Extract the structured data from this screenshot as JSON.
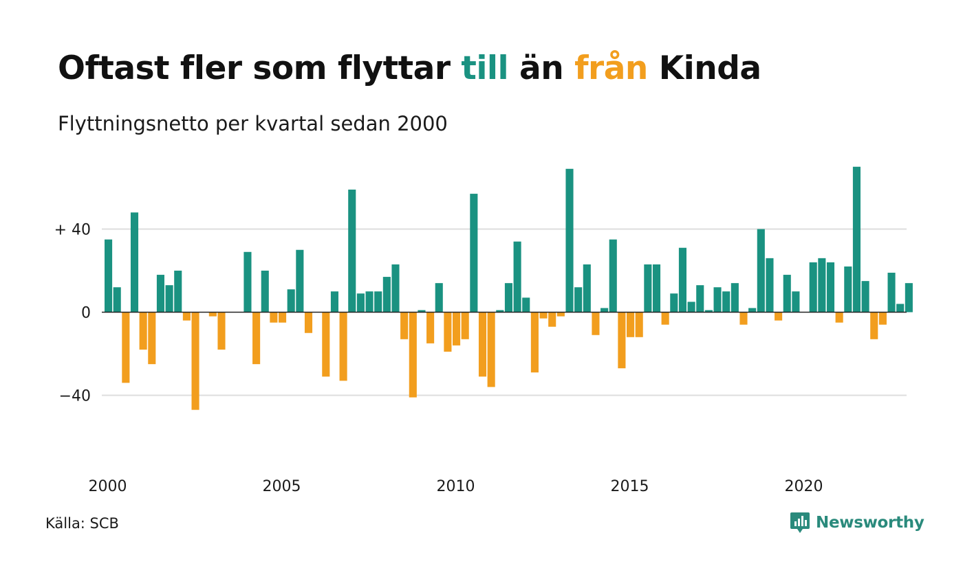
{
  "title": {
    "part1": "Oftast fler som flyttar ",
    "pos_word": "till",
    "part2": " än ",
    "neg_word": "från",
    "part3": " Kinda"
  },
  "subtitle": "Flyttningsnetto per kvartal sedan 2000",
  "source": "Källa: SCB",
  "brand": {
    "name": "Newsworthy",
    "icon": "newsworthy-logo-icon"
  },
  "colors": {
    "positive": "#1a9281",
    "negative": "#f29e1e",
    "grid": "#dddddd",
    "zero": "#222222"
  },
  "chart_data": {
    "type": "bar",
    "title": "Oftast fler som flyttar till än från Kinda",
    "subtitle": "Flyttningsnetto per kvartal sedan 2000",
    "xlabel": "",
    "ylabel": "",
    "ylim": [
      -64,
      72
    ],
    "grid": true,
    "y_ticks": [
      {
        "value": 40,
        "label": "+ 40"
      },
      {
        "value": 0,
        "label": "0"
      },
      {
        "value": -40,
        "label": "−40"
      }
    ],
    "x_ticks": [
      {
        "value": 2000,
        "label": "2000"
      },
      {
        "value": 2005,
        "label": "2005"
      },
      {
        "value": 2010,
        "label": "2010"
      },
      {
        "value": 2015,
        "label": "2015"
      },
      {
        "value": 2020,
        "label": "2020"
      }
    ],
    "start_year": 2000,
    "periods_per_year": 4,
    "series": [
      {
        "values": [
          35,
          12,
          -34,
          48,
          -18,
          -25,
          18,
          13,
          20,
          -4,
          -47,
          0,
          -2,
          -18,
          0,
          0,
          29,
          -25,
          20,
          -5,
          -5,
          11,
          30,
          -10,
          0,
          -31,
          10,
          -33,
          59,
          9,
          10,
          10,
          17,
          23,
          -13,
          -41,
          1,
          -15,
          14,
          -19,
          -16,
          -13,
          57,
          -31,
          -36,
          1,
          14,
          34,
          7,
          -29,
          -3,
          -7,
          -2,
          69,
          12,
          23,
          -11,
          2,
          35,
          -27,
          -12,
          -12,
          23,
          23,
          -6,
          9,
          31,
          5,
          13,
          1,
          12,
          10,
          14,
          -6,
          2,
          40,
          26,
          -4,
          18,
          10,
          0,
          24,
          26,
          24,
          -5,
          22,
          70,
          15,
          -13,
          -6,
          19,
          4,
          14
        ]
      }
    ]
  }
}
